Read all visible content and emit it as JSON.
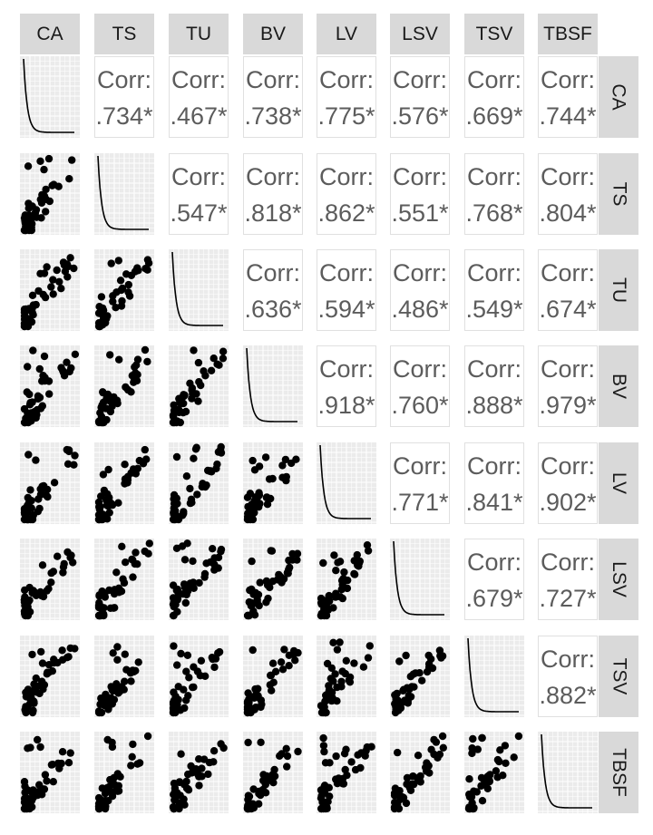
{
  "chart_data": {
    "type": "scatter-matrix",
    "variables": [
      "CA",
      "TS",
      "TU",
      "BV",
      "LV",
      "LSV",
      "TSV",
      "TBSF"
    ],
    "corr_label": "Corr:",
    "correlations": [
      {
        "row": "CA",
        "col": "TS",
        "text": ".734*"
      },
      {
        "row": "CA",
        "col": "TU",
        "text": ".467*"
      },
      {
        "row": "CA",
        "col": "BV",
        "text": ".738*"
      },
      {
        "row": "CA",
        "col": "LV",
        "text": ".775*"
      },
      {
        "row": "CA",
        "col": "LSV",
        "text": ".576*"
      },
      {
        "row": "CA",
        "col": "TSV",
        "text": ".669*"
      },
      {
        "row": "CA",
        "col": "TBSF",
        "text": ".744*"
      },
      {
        "row": "TS",
        "col": "TU",
        "text": ".547*"
      },
      {
        "row": "TS",
        "col": "BV",
        "text": ".818*"
      },
      {
        "row": "TS",
        "col": "LV",
        "text": ".862*"
      },
      {
        "row": "TS",
        "col": "LSV",
        "text": ".551*"
      },
      {
        "row": "TS",
        "col": "TSV",
        "text": ".768*"
      },
      {
        "row": "TS",
        "col": "TBSF",
        "text": ".804*"
      },
      {
        "row": "TU",
        "col": "BV",
        "text": ".636*"
      },
      {
        "row": "TU",
        "col": "LV",
        "text": ".594*"
      },
      {
        "row": "TU",
        "col": "LSV",
        "text": ".486*"
      },
      {
        "row": "TU",
        "col": "TSV",
        "text": ".549*"
      },
      {
        "row": "TU",
        "col": "TBSF",
        "text": ".674*"
      },
      {
        "row": "BV",
        "col": "LV",
        "text": ".918*"
      },
      {
        "row": "BV",
        "col": "LSV",
        "text": ".760*"
      },
      {
        "row": "BV",
        "col": "TSV",
        "text": ".888*"
      },
      {
        "row": "BV",
        "col": "TBSF",
        "text": ".979*"
      },
      {
        "row": "LV",
        "col": "LSV",
        "text": ".771*"
      },
      {
        "row": "LV",
        "col": "TSV",
        "text": ".841*"
      },
      {
        "row": "LV",
        "col": "TBSF",
        "text": ".902*"
      },
      {
        "row": "LSV",
        "col": "TSV",
        "text": ".679*"
      },
      {
        "row": "LSV",
        "col": "TBSF",
        "text": ".727*"
      },
      {
        "row": "TSV",
        "col": "TBSF",
        "text": ".882*"
      }
    ],
    "diagonal": "density",
    "lower": "scatter",
    "upper": "correlation text",
    "grid": true,
    "point_color": "#000000",
    "panel_background": "#ebebeb",
    "strip_color": "#d9d9d9",
    "corr_text_color": "#5c5c5c"
  }
}
